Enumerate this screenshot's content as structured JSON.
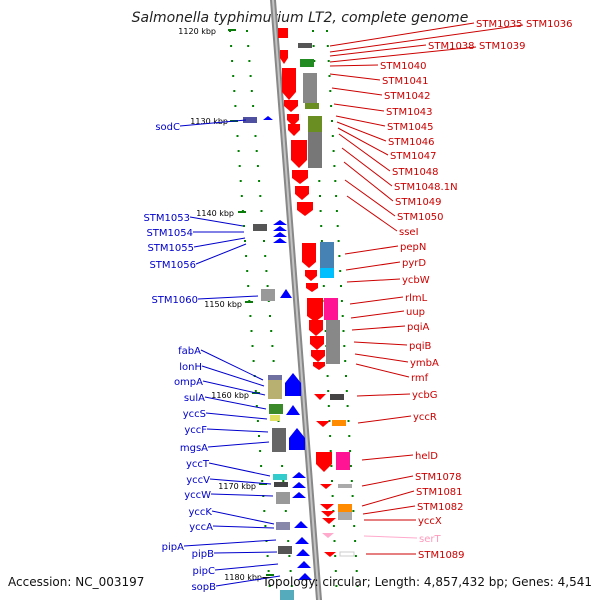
{
  "title": "Salmonella typhimurium LT2, complete genome",
  "accession_text": "Accession: NC_003197",
  "topology_text": "Topology: circular; Length: 4,857,432 bp; Genes: 4,541",
  "colors": {
    "forward": "#ff0000",
    "reverse": "#0000ff",
    "trna": "#ffaacc",
    "backbone": "#888888",
    "tick": "#008000"
  },
  "kbp_labels": [
    {
      "label": "1120 kbp",
      "value": 1120
    },
    {
      "label": "1130 kbp",
      "value": 1130
    },
    {
      "label": "1140 kbp",
      "value": 1140
    },
    {
      "label": "1150 kbp",
      "value": 1150
    },
    {
      "label": "1160 kbp",
      "value": 1160
    },
    {
      "label": "1170 kbp",
      "value": 1170
    },
    {
      "label": "1180 kbp",
      "value": 1180
    }
  ],
  "left_genes": [
    {
      "name": "sodC"
    },
    {
      "name": "STM1053"
    },
    {
      "name": "STM1054"
    },
    {
      "name": "STM1055"
    },
    {
      "name": "STM1056"
    },
    {
      "name": "STM1060"
    },
    {
      "name": "fabA"
    },
    {
      "name": "lonH"
    },
    {
      "name": "ompA"
    },
    {
      "name": "sulA"
    },
    {
      "name": "yccS"
    },
    {
      "name": "yccF"
    },
    {
      "name": "mgsA"
    },
    {
      "name": "yccT"
    },
    {
      "name": "yccV"
    },
    {
      "name": "yccW"
    },
    {
      "name": "yccK"
    },
    {
      "name": "yccA"
    },
    {
      "name": "pipA"
    },
    {
      "name": "pipB"
    },
    {
      "name": "pipC"
    },
    {
      "name": "sopB"
    }
  ],
  "right_genes": [
    {
      "name": "STM1035"
    },
    {
      "name": "STM1036"
    },
    {
      "name": "STM1038"
    },
    {
      "name": "STM1039"
    },
    {
      "name": "STM1040"
    },
    {
      "name": "STM1041"
    },
    {
      "name": "STM1042"
    },
    {
      "name": "STM1043"
    },
    {
      "name": "STM1045"
    },
    {
      "name": "STM1046"
    },
    {
      "name": "STM1047"
    },
    {
      "name": "STM1048"
    },
    {
      "name": "STM1048.1N"
    },
    {
      "name": "STM1049"
    },
    {
      "name": "STM1050"
    },
    {
      "name": "sseI"
    },
    {
      "name": "pepN"
    },
    {
      "name": "pyrD"
    },
    {
      "name": "ycbW"
    },
    {
      "name": "rlmL"
    },
    {
      "name": "uup"
    },
    {
      "name": "pqiA"
    },
    {
      "name": "pqiB"
    },
    {
      "name": "ymbA"
    },
    {
      "name": "rmf"
    },
    {
      "name": "ycbG"
    },
    {
      "name": "yccR"
    },
    {
      "name": "helD"
    },
    {
      "name": "STM1078"
    },
    {
      "name": "STM1081"
    },
    {
      "name": "STM1082"
    },
    {
      "name": "yccX"
    },
    {
      "name": "serT"
    },
    {
      "name": "STM1089"
    }
  ]
}
